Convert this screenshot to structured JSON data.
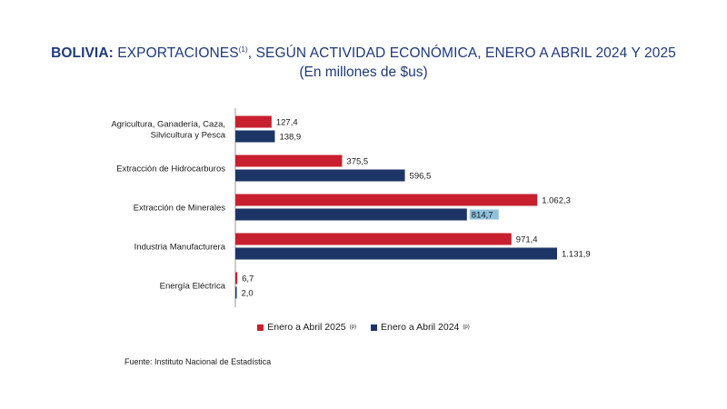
{
  "header": {
    "title_bold": "BOLIVIA:",
    "title_a": " EXPORTACIONES",
    "title_sup": "(1)",
    "title_b": ", SEGÚN ACTIVIDAD ECONÓMICA, ENERO A ABRIL 2024 Y 2025",
    "subtitle": "(En millones de $us)"
  },
  "legend": {
    "series_2025": "Enero a Abril  2025",
    "series_2025_sup": "(p)",
    "series_2024": "Enero a Abril  2024",
    "series_2024_sup": "(p)"
  },
  "source": "Fuente: Instituto Nacional de Estadística",
  "colors": {
    "series_2025": "#c8202f",
    "series_2024": "#1c3566",
    "label_highlight": "#8fc1dc"
  },
  "chart_data": {
    "type": "bar",
    "orientation": "horizontal",
    "title": "BOLIVIA: EXPORTACIONES(1), SEGÚN ACTIVIDAD ECONÓMICA, ENERO A ABRIL 2024 Y 2025",
    "subtitle": "(En millones de $us)",
    "categories": [
      [
        "Agricultura, Ganadería, Caza,",
        "Silvicultura y Pesca"
      ],
      [
        "Extracción de Hidrocarburos"
      ],
      [
        "Extracción de Minerales"
      ],
      [
        "Industria Manufacturera"
      ],
      [
        "Energía Eléctrica"
      ]
    ],
    "series": [
      {
        "name": "Enero a Abril  2025(p)",
        "values": [
          127.4,
          375.5,
          1062.3,
          971.4,
          6.7
        ],
        "labels": [
          "127,4",
          "375,5",
          "1.062,3",
          "971,4",
          "6,7"
        ]
      },
      {
        "name": "Enero a Abril  2024(p)",
        "values": [
          138.9,
          596.5,
          814.7,
          1131.9,
          2.0
        ],
        "labels": [
          "138,9",
          "596,5",
          "814,7",
          "1.131,9",
          "2,0"
        ]
      }
    ],
    "xlim": [
      0,
      1131.9
    ],
    "highlighted_label": {
      "series": 1,
      "index": 2
    },
    "legend_position": "bottom",
    "grid": false
  }
}
